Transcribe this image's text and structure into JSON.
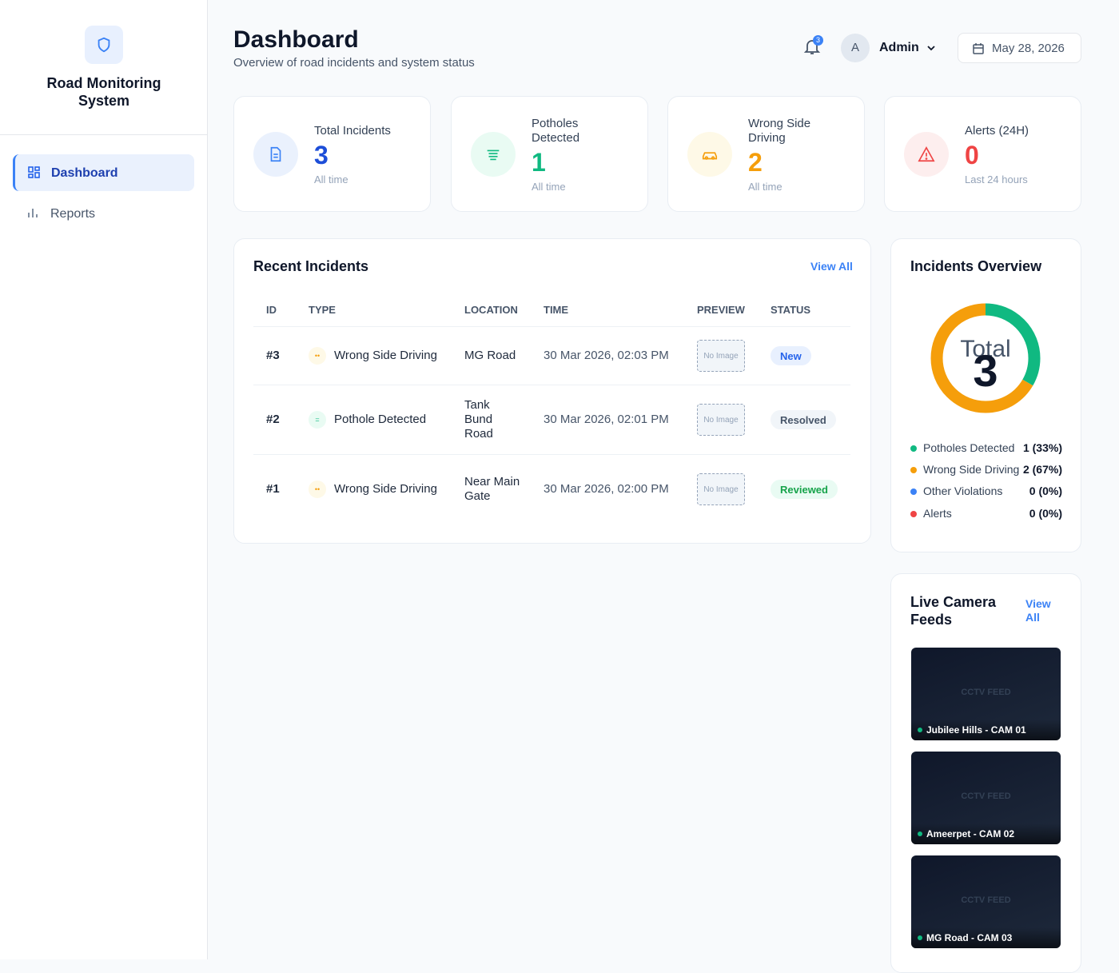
{
  "sidebar": {
    "title": "Road Monitoring System",
    "nav": [
      "Dashboard",
      "Reports"
    ]
  },
  "header": {
    "title": "Dashboard",
    "subtitle": "Overview of road incidents and system status",
    "notification_count": 3,
    "user_initial": "A",
    "user": "Admin",
    "date": "May 28, 2026"
  },
  "stats": [
    {
      "label": "Total Incidents",
      "value": 3,
      "note": "All time"
    },
    {
      "label": "Potholes Detected",
      "value": 1,
      "note": "All time"
    },
    {
      "label": "Wrong Side Driving",
      "value": 2,
      "note": "All time"
    },
    {
      "label": "Alerts (24H)",
      "value": 0,
      "note": "Last 24 hours"
    }
  ],
  "recent_incidents": {
    "title": "Recent Incidents",
    "link": "View All",
    "columns": [
      "ID",
      "TYPE",
      "LOCATION",
      "TIME",
      "PREVIEW",
      "STATUS"
    ],
    "rows": [
      [
        "#3",
        "Wrong Side Driving",
        "MG Road",
        "30 Mar 2026, 02:03 PM",
        "No Image",
        "New"
      ],
      [
        "#2",
        "Pothole Detected",
        "Tank Bund Road",
        "30 Mar 2026, 02:01 PM",
        "No Image",
        "Resolved"
      ],
      [
        "#1",
        "Wrong Side Driving",
        "Near Main Gate",
        "30 Mar 2026, 02:00 PM",
        "No Image",
        "Reviewed"
      ]
    ]
  },
  "overview": {
    "title": "Incidents Overview",
    "center_label": "Total",
    "total": 3,
    "legend": [
      {
        "name": "Potholes Detected",
        "value": 1,
        "value_label": "1 (33%)",
        "color": "#10b981"
      },
      {
        "name": "Wrong Side Driving",
        "value": 2,
        "value_label": "2 (67%)",
        "color": "#f59e0b"
      },
      {
        "name": "Other Violations",
        "value": 0,
        "value_label": "0 (0%)",
        "color": "#3b82f6"
      },
      {
        "name": "Alerts",
        "value": 0,
        "value_label": "0 (0%)",
        "color": "#ef4444"
      }
    ]
  },
  "cameras": {
    "title": "Live Camera Feeds",
    "link": "View All",
    "placeholder": "CCTV FEED",
    "feeds": [
      "Jubilee Hills - CAM 01",
      "Ameerpet - CAM 02",
      "MG Road - CAM 03"
    ]
  }
}
